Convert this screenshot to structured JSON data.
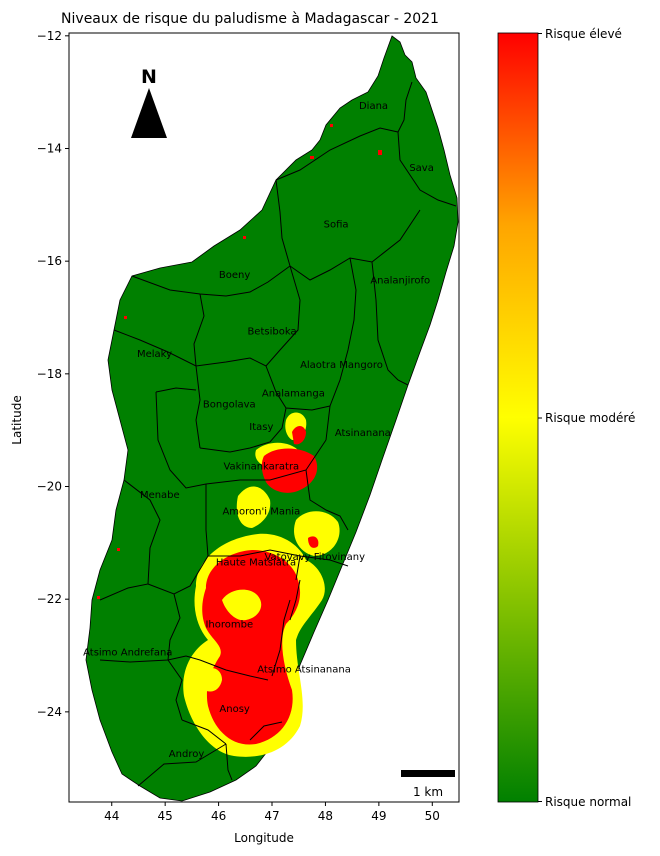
{
  "title": "Niveaux de risque du paludisme à Madagascar - 2021",
  "axes": {
    "xlabel": "Longitude",
    "ylabel": "Latitude",
    "xticks": [
      "44",
      "45",
      "46",
      "47",
      "48",
      "49",
      "50"
    ],
    "yticks": [
      "−12",
      "−14",
      "−16",
      "−18",
      "−20",
      "−22",
      "−24"
    ],
    "xlim": [
      43.2,
      50.5
    ],
    "ylim": [
      -25.6,
      -11.95
    ]
  },
  "north_arrow": {
    "label": "N"
  },
  "scale_bar": {
    "label": "1 km"
  },
  "colorbar": {
    "labels": {
      "high": "Risque élevé",
      "moderate": "Risque modéré",
      "normal": "Risque normal"
    },
    "colors": {
      "high": "#ff0000",
      "moderate": "#ffff00",
      "normal": "#008000"
    }
  },
  "colors": {
    "land": "#008000",
    "moderate": "#ffff00",
    "high": "#ff0000",
    "boundary": "#000000"
  },
  "regions": [
    {
      "name": "Diana",
      "lon": 48.9,
      "lat": -13.3
    },
    {
      "name": "Sava",
      "lon": 49.8,
      "lat": -14.4
    },
    {
      "name": "Sofia",
      "lon": 48.2,
      "lat": -15.4
    },
    {
      "name": "Boeny",
      "lon": 46.3,
      "lat": -16.3
    },
    {
      "name": "Analanjirofo",
      "lon": 49.4,
      "lat": -16.4
    },
    {
      "name": "Betsiboka",
      "lon": 47.0,
      "lat": -17.3
    },
    {
      "name": "Melaky",
      "lon": 44.8,
      "lat": -17.7
    },
    {
      "name": "Alaotra Mangoro",
      "lon": 48.3,
      "lat": -17.9
    },
    {
      "name": "Analamanga",
      "lon": 47.4,
      "lat": -18.4
    },
    {
      "name": "Bongolava",
      "lon": 46.2,
      "lat": -18.6
    },
    {
      "name": "Itasy",
      "lon": 46.8,
      "lat": -19.0
    },
    {
      "name": "Atsinanana",
      "lon": 48.7,
      "lat": -19.1
    },
    {
      "name": "Vakinankaratra",
      "lon": 46.8,
      "lat": -19.7
    },
    {
      "name": "Menabe",
      "lon": 44.9,
      "lat": -20.2
    },
    {
      "name": "Amoron'i Mania",
      "lon": 46.8,
      "lat": -20.5
    },
    {
      "name": "Vatovavy Fitovinany",
      "lon": 47.8,
      "lat": -21.3
    },
    {
      "name": "Haute Matsiatra",
      "lon": 46.7,
      "lat": -21.4
    },
    {
      "name": "Ihorombe",
      "lon": 46.2,
      "lat": -22.5
    },
    {
      "name": "Atsimo Andrefana",
      "lon": 44.3,
      "lat": -23.0
    },
    {
      "name": "Atsimo Atsinanana",
      "lon": 47.6,
      "lat": -23.3
    },
    {
      "name": "Anosy",
      "lon": 46.3,
      "lat": -24.0
    },
    {
      "name": "Androy",
      "lon": 45.4,
      "lat": -24.8
    }
  ]
}
